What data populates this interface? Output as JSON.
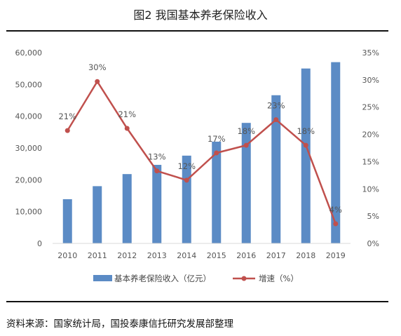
{
  "header": {
    "title": "图2 我国基本养老保险收入"
  },
  "footer": {
    "source": "资料来源：国家统计局，国投泰康信托研究发展部整理"
  },
  "colors": {
    "bar": "#5b8bc5",
    "line": "#c0504d",
    "text": "#555555",
    "grid": "#d9d9d9"
  },
  "chart_data": {
    "type": "bar",
    "categories": [
      "2010",
      "2011",
      "2012",
      "2013",
      "2014",
      "2015",
      "2016",
      "2017",
      "2018",
      "2019"
    ],
    "series": [
      {
        "name": "基本养老保险收入（亿元）",
        "type": "bar",
        "axis": "left",
        "values": [
          13900,
          18000,
          21800,
          24700,
          27600,
          32000,
          37900,
          46600,
          55000,
          57000
        ]
      },
      {
        "name": "增速（%）",
        "type": "line",
        "axis": "right",
        "values": [
          20.7,
          29.7,
          21.1,
          13.3,
          11.6,
          16.6,
          18.0,
          22.7,
          18.0,
          3.6
        ],
        "labels": [
          "21%",
          "30%",
          "21%",
          "13%",
          "12%",
          "17%",
          "18%",
          "23%",
          "18%",
          "4%"
        ]
      }
    ],
    "y_left": {
      "min": 0,
      "max": 60000,
      "ticks": [
        "0",
        "10,000",
        "20,000",
        "30,000",
        "40,000",
        "50,000",
        "60,000"
      ]
    },
    "y_right": {
      "min": 0,
      "max": 35,
      "ticks": [
        "0%",
        "5%",
        "10%",
        "15%",
        "20%",
        "25%",
        "30%",
        "35%"
      ]
    },
    "grid": false,
    "legend_position": "bottom"
  }
}
